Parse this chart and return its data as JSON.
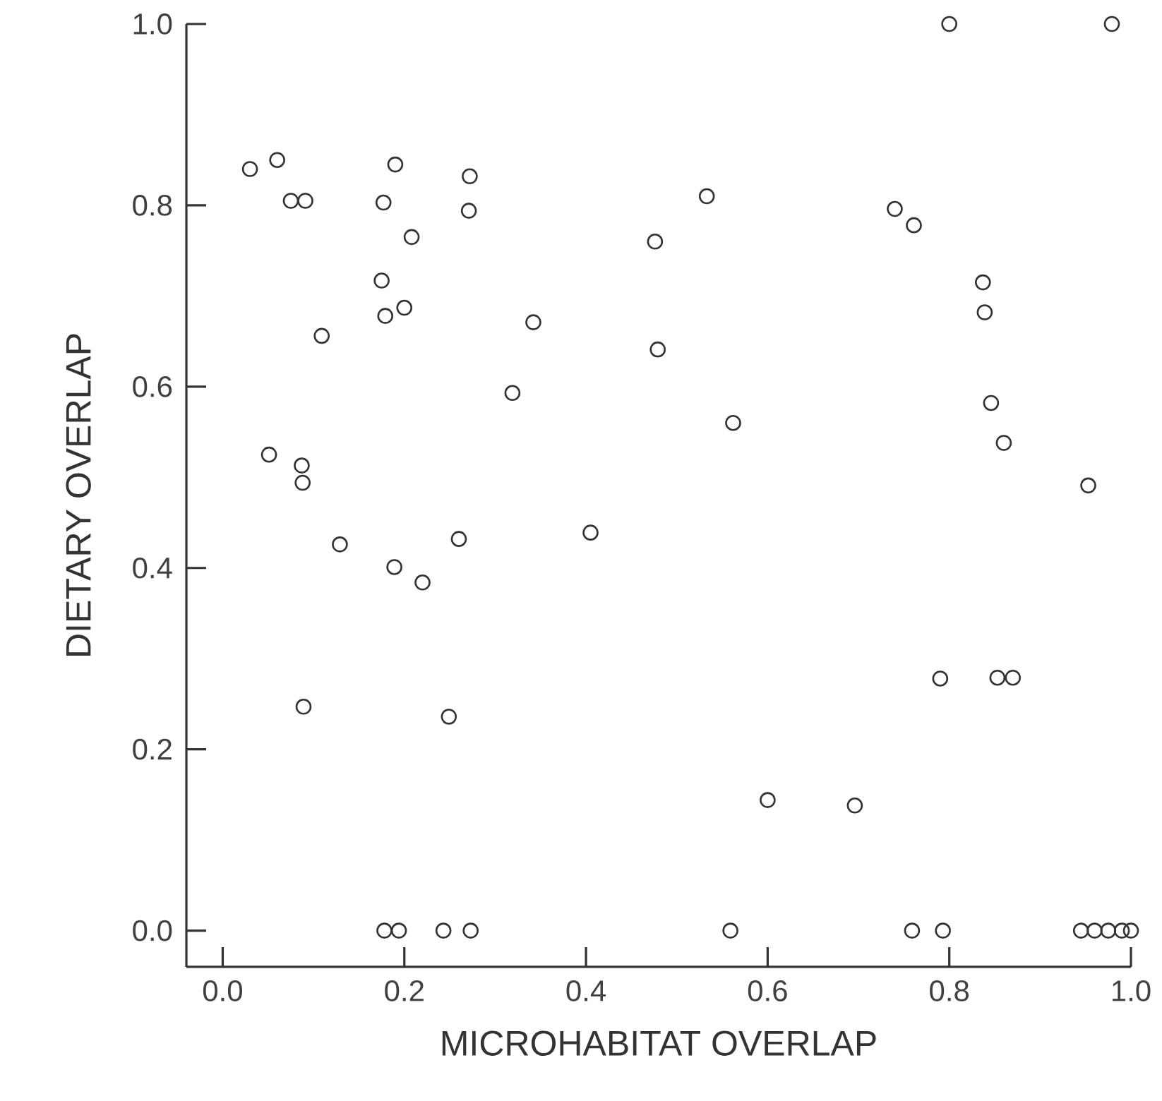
{
  "chart_data": {
    "type": "scatter",
    "xlabel": "MICROHABITAT OVERLAP",
    "ylabel": "DIETARY OVERLAP",
    "xlim": [
      -0.04,
      1.0
    ],
    "ylim": [
      -0.04,
      1.0
    ],
    "xticks": [
      {
        "value": 0,
        "label": "0.0"
      },
      {
        "value": 0.2,
        "label": "0.2"
      },
      {
        "value": 0.4,
        "label": "0.4"
      },
      {
        "value": 0.6,
        "label": "0.6"
      },
      {
        "value": 0.8,
        "label": "0.8"
      },
      {
        "value": 1.0,
        "label": "1.0"
      }
    ],
    "yticks": [
      {
        "value": 0,
        "label": "0.0"
      },
      {
        "value": 0.2,
        "label": "0.2"
      },
      {
        "value": 0.4,
        "label": "0.4"
      },
      {
        "value": 0.6,
        "label": "0.6"
      },
      {
        "value": 0.8,
        "label": "0.8"
      },
      {
        "value": 1.0,
        "label": "1.0"
      }
    ],
    "marker": "circle",
    "series": [
      {
        "color": "#333333",
        "x": [
          0.03,
          0.06,
          0.075,
          0.091,
          0.19,
          0.177,
          0.272,
          0.271,
          0.208,
          0.175,
          0.179,
          0.2,
          0.109,
          0.342,
          0.319,
          0.051,
          0.087,
          0.088,
          0.8,
          0.979,
          0.533,
          0.74,
          0.761,
          0.476,
          0.837,
          0.839,
          0.479,
          0.846,
          0.86,
          0.562,
          0.953,
          0.129,
          0.189,
          0.22,
          0.26,
          0.405,
          0.089,
          0.249,
          0.178,
          0.194,
          0.243,
          0.273,
          0.79,
          0.853,
          0.87,
          0.6,
          0.696,
          0.559,
          0.759,
          0.793,
          0.945,
          0.96,
          0.975,
          0.99,
          1.0
        ],
        "values": [
          0.84,
          0.85,
          0.805,
          0.805,
          0.845,
          0.803,
          0.832,
          0.794,
          0.765,
          0.717,
          0.678,
          0.687,
          0.656,
          0.671,
          0.593,
          0.525,
          0.513,
          0.494,
          1.0,
          1.0,
          0.81,
          0.796,
          0.778,
          0.76,
          0.715,
          0.682,
          0.641,
          0.582,
          0.538,
          0.56,
          0.491,
          0.426,
          0.401,
          0.384,
          0.432,
          0.439,
          0.247,
          0.236,
          0.0,
          0.0,
          0.0,
          0.0,
          0.278,
          0.279,
          0.279,
          0.144,
          0.138,
          0.0,
          0.0,
          0.0,
          0.0,
          0.0,
          0.0,
          0.0,
          0.0
        ]
      }
    ]
  }
}
